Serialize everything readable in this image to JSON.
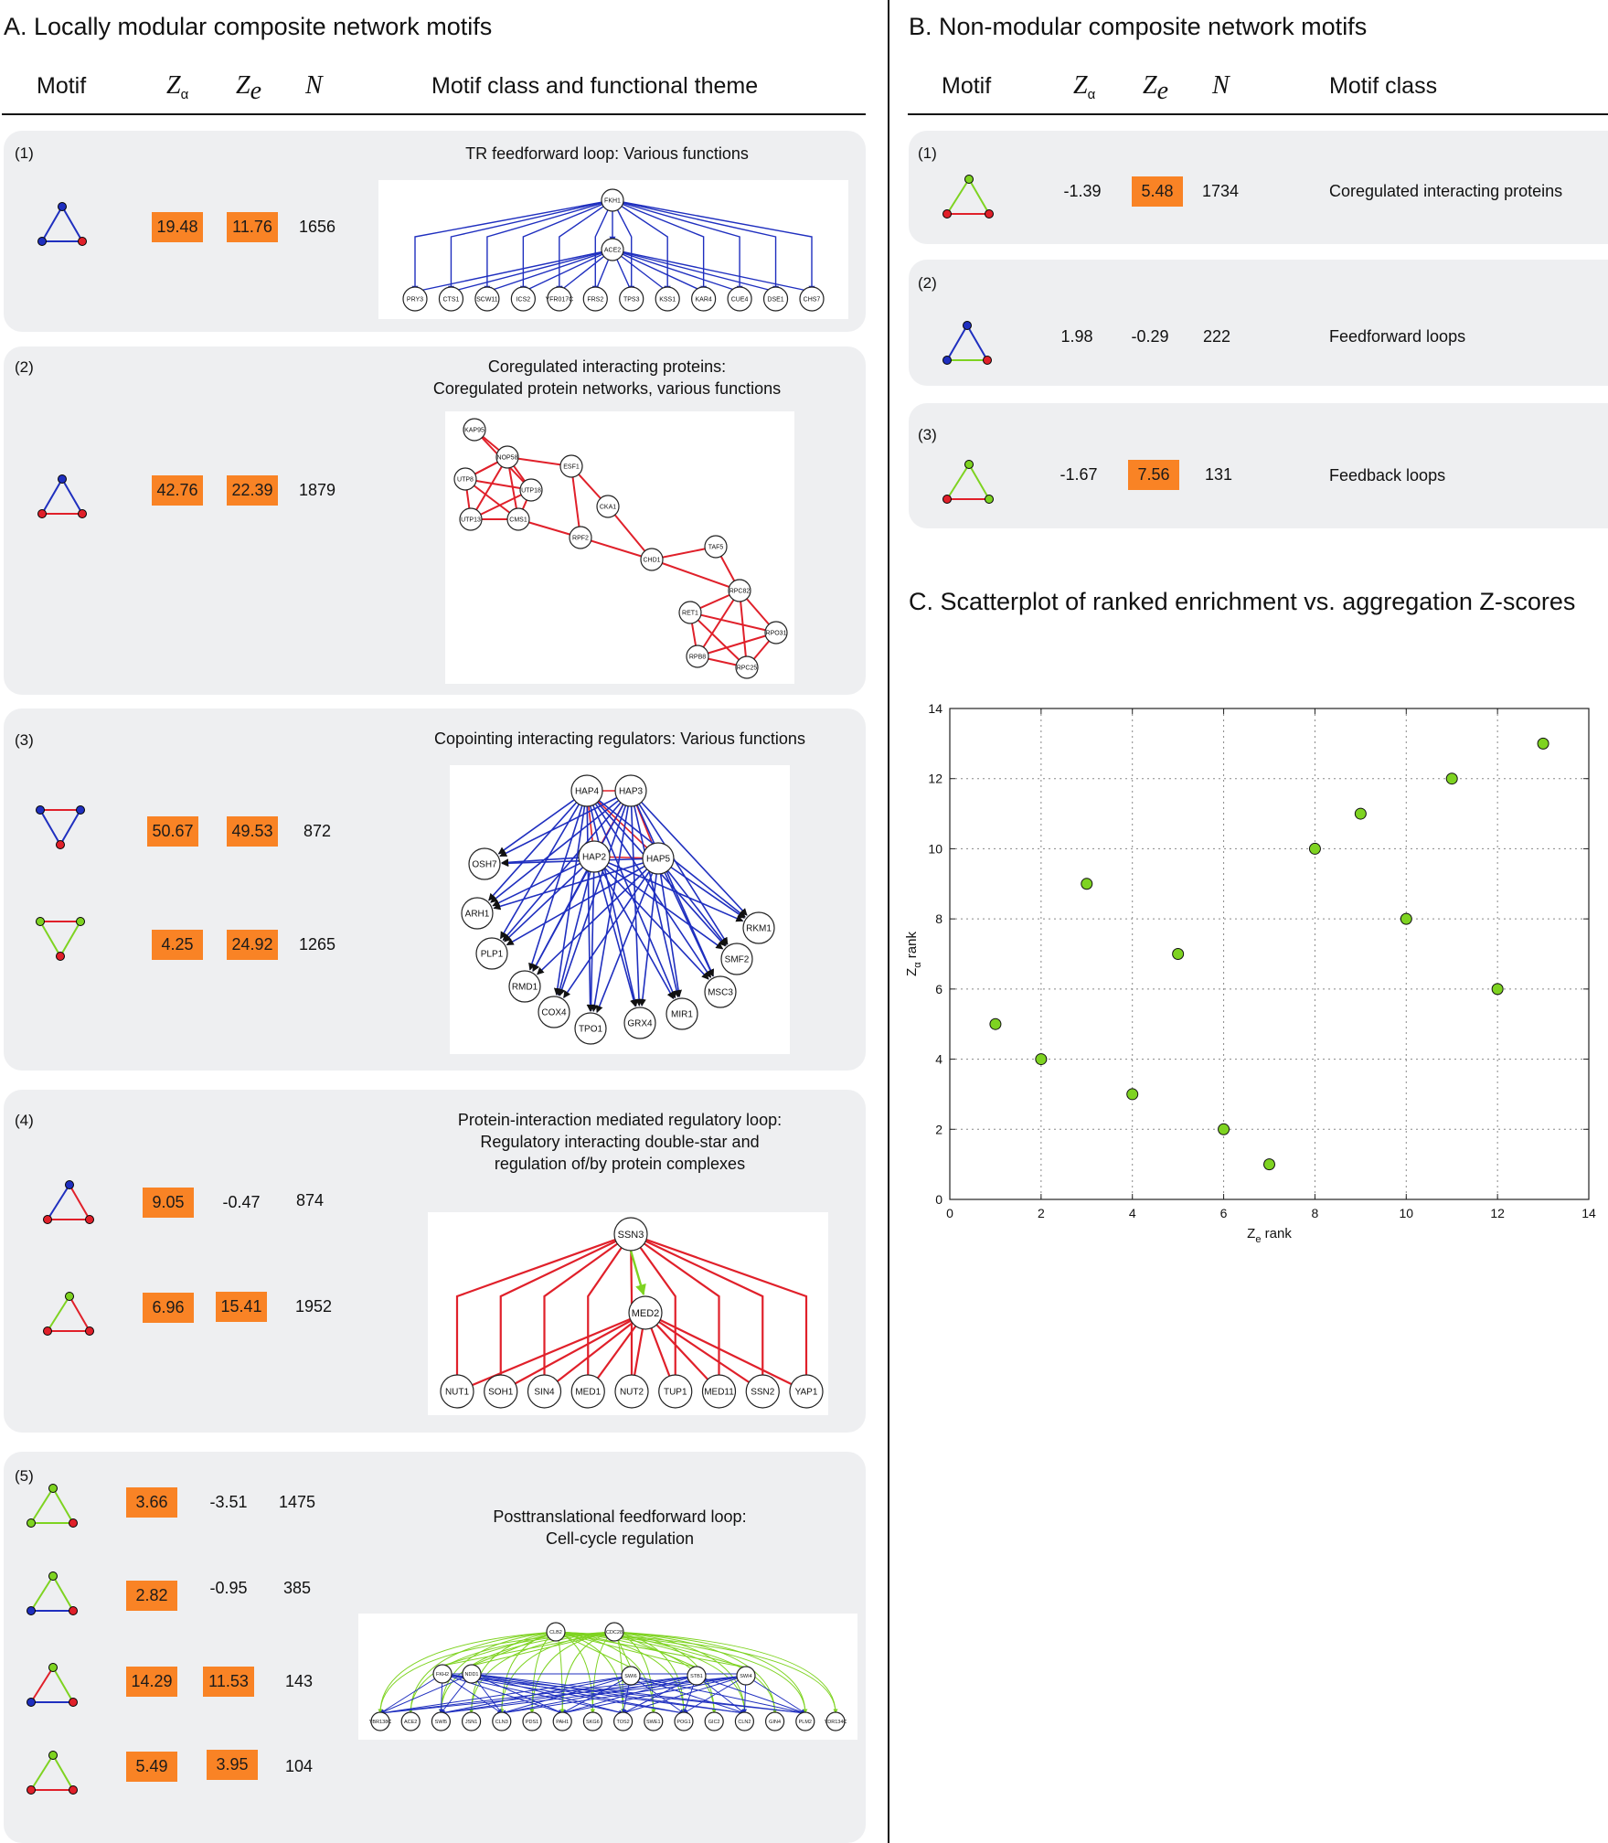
{
  "sectionA": {
    "title": "A. Locally modular composite network motifs",
    "headers": {
      "motif": "Motif",
      "za": "Z",
      "za_sub": "α",
      "ze": "Z",
      "ze_sub": "e",
      "n": "N",
      "cls": "Motif class and functional theme"
    },
    "panels": [
      {
        "index": "(1)",
        "caption": "TR feedforward loop: Various functions",
        "rows": [
          {
            "motif": "blue-blue-blue",
            "za": "19.48",
            "za_hl": true,
            "ze": "11.76",
            "ze_hl": true,
            "n": "1656"
          }
        ],
        "network": {
          "hub": "FKH1",
          "mid": "ACE2",
          "targets": [
            "PRY3",
            "CTS1",
            "SCW11",
            "ICS2",
            "YFR017C",
            "FRS2",
            "TPS3",
            "KSS1",
            "KAR4",
            "CUE4",
            "DSE1",
            "CHS7"
          ]
        }
      },
      {
        "index": "(2)",
        "caption": "Coregulated interacting proteins:",
        "caption2": "Coregulated protein networks, various functions",
        "rows": [
          {
            "motif": "blue-red-red",
            "za": "42.76",
            "za_hl": true,
            "ze": "22.39",
            "ze_hl": true,
            "n": "1879"
          }
        ],
        "network": {
          "nodes": [
            "KAP95",
            "NOP58",
            "ESF1",
            "UTP8",
            "UTP18",
            "UTP13",
            "CMS1",
            "CKA1",
            "RPF2",
            "CHD1",
            "TAF5",
            "RPC82",
            "RET1",
            "RPO31",
            "RPB8",
            "RPC25"
          ]
        }
      },
      {
        "index": "(3)",
        "caption": "Copointing interacting regulators: Various functions",
        "rows": [
          {
            "motif": "inv-blue",
            "za": "50.67",
            "za_hl": true,
            "ze": "49.53",
            "ze_hl": true,
            "n": "872"
          },
          {
            "motif": "inv-green",
            "za": "4.25",
            "za_hl": true,
            "ze": "24.92",
            "ze_hl": true,
            "n": "1265"
          }
        ],
        "network": {
          "regulators": [
            "HAP4",
            "HAP3",
            "HAP2",
            "HAP5"
          ],
          "targets": [
            "OSH7",
            "ARH1",
            "PLP1",
            "RMD1",
            "COX4",
            "TPO1",
            "GRX4",
            "MIR1",
            "MSC3",
            "SMF2",
            "RKM1"
          ]
        }
      },
      {
        "index": "(4)",
        "caption": "Protein-interaction mediated regulatory loop:",
        "caption2": "Regulatory interacting double-star and",
        "caption3": "regulation of/by protein complexes",
        "rows": [
          {
            "motif": "blue-red",
            "za": "9.05",
            "za_hl": true,
            "ze": "-0.47",
            "ze_hl": false,
            "n": "874"
          },
          {
            "motif": "green-red",
            "za": "6.96",
            "za_hl": true,
            "ze": "15.41",
            "ze_hl": true,
            "n": "1952"
          }
        ],
        "network": {
          "hub": "SSN3",
          "mid": "MED2",
          "targets": [
            "NUT1",
            "SOH1",
            "SIN4",
            "MED1",
            "NUT2",
            "TUP1",
            "MED11",
            "SSN2",
            "YAP1"
          ]
        }
      },
      {
        "index": "(5)",
        "caption": "Posttranslational feedforward loop:",
        "caption2": "Cell-cycle regulation",
        "rows": [
          {
            "motif": "green-green-blue",
            "za": "3.66",
            "za_hl": true,
            "ze": "-3.51",
            "ze_hl": false,
            "n": "1475"
          },
          {
            "motif": "green-green-blue2",
            "za": "2.82",
            "za_hl": true,
            "ze": "-0.95",
            "ze_hl": false,
            "n": "385"
          },
          {
            "motif": "green-red-blue",
            "za": "14.29",
            "za_hl": true,
            "ze": "11.53",
            "ze_hl": true,
            "n": "143"
          },
          {
            "motif": "green-green-red",
            "za": "5.49",
            "za_hl": true,
            "ze": "3.95",
            "ze_hl": true,
            "n": "104"
          }
        ],
        "network": {
          "top": [
            "CLB2",
            "CDC28"
          ],
          "mid": [
            "FKH2",
            "NDD1",
            "SWI6",
            "STB1",
            "SWI4"
          ],
          "targets": [
            "YBR138C",
            "ACE2",
            "SWI5",
            "JSN1",
            "CLN3",
            "PDS1",
            "PAH1",
            "SKG6",
            "TOS2",
            "SWE1",
            "POG1",
            "GIC2",
            "CLN2",
            "GIN4",
            "PLM2",
            "YDR134C"
          ]
        }
      }
    ]
  },
  "sectionB": {
    "title": "B. Non-modular composite network motifs",
    "headers": {
      "motif": "Motif",
      "za": "Z",
      "za_sub": "α",
      "ze": "Z",
      "ze_sub": "e",
      "n": "N",
      "cls": "Motif class"
    },
    "panels": [
      {
        "index": "(1)",
        "motif": "green-green-red",
        "za": "-1.39",
        "za_hl": false,
        "ze": "5.48",
        "ze_hl": true,
        "n": "1734",
        "cls": "Coregulated interacting proteins"
      },
      {
        "index": "(2)",
        "motif": "blue-green",
        "za": "1.98",
        "za_hl": false,
        "ze": "-0.29",
        "ze_hl": false,
        "n": "222",
        "cls": "Feedforward loops"
      },
      {
        "index": "(3)",
        "motif": "green-red-loop",
        "za": "-1.67",
        "za_hl": false,
        "ze": "7.56",
        "ze_hl": true,
        "n": "131",
        "cls": "Feedback loops"
      }
    ]
  },
  "sectionC": {
    "title": "C. Scatterplot of ranked enrichment vs. aggregation Z-scores"
  },
  "chart_data": {
    "type": "scatter",
    "title": "C. Scatterplot of ranked enrichment vs. aggregation Z-scores",
    "xlabel": "Z",
    "xlabel_sub": "e",
    "xlabel_suffix": " rank",
    "ylabel": "Z",
    "ylabel_sub": "α",
    "ylabel_suffix": " rank",
    "xlim": [
      0,
      14
    ],
    "ylim": [
      0,
      14
    ],
    "xticks": [
      0,
      2,
      4,
      6,
      8,
      10,
      12,
      14
    ],
    "yticks": [
      0,
      2,
      4,
      6,
      8,
      10,
      12,
      14
    ],
    "grid": true,
    "marker_color": "#7ed321",
    "points": [
      {
        "x": 1,
        "y": 5
      },
      {
        "x": 2,
        "y": 4
      },
      {
        "x": 3,
        "y": 9
      },
      {
        "x": 4,
        "y": 3
      },
      {
        "x": 5,
        "y": 7
      },
      {
        "x": 6,
        "y": 2
      },
      {
        "x": 7,
        "y": 1
      },
      {
        "x": 8,
        "y": 10
      },
      {
        "x": 9,
        "y": 11
      },
      {
        "x": 10,
        "y": 8
      },
      {
        "x": 11,
        "y": 12
      },
      {
        "x": 12,
        "y": 6
      },
      {
        "x": 13,
        "y": 13
      }
    ]
  },
  "colors": {
    "blue": "#1f2fbf",
    "red": "#e0202a",
    "green": "#7ed321",
    "highlight": "#f98325",
    "panel": "#eeeff1"
  }
}
